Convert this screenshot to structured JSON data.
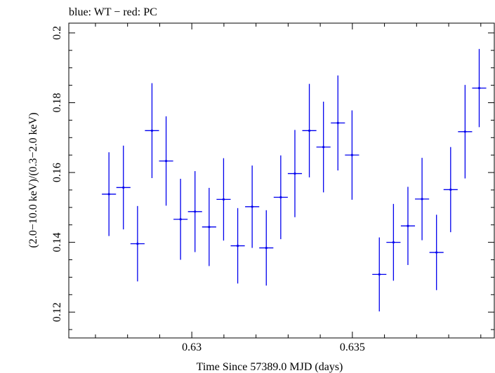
{
  "chart_data": {
    "type": "scatter",
    "title": "blue: WT − red: PC",
    "xlabel": "Time Since 57389.0 MJD (days)",
    "ylabel": "(2.0−10.0 keV)/(0.3−2.0 keV)",
    "xlim": [
      0.62617,
      0.63942
    ],
    "ylim": [
      0.1126,
      0.2028
    ],
    "x_ticks": [
      0.63,
      0.635
    ],
    "y_ticks": [
      0.12,
      0.14,
      0.16,
      0.18,
      0.2
    ],
    "x_tick_labels": [
      "0.63",
      "0.635"
    ],
    "y_tick_labels": [
      "0.12",
      "0.14",
      "0.16",
      "0.18",
      "0.2"
    ],
    "grid": false,
    "series": [
      {
        "color": "#0000ee",
        "points": [
          {
            "x": 0.62742,
            "xerr": 0.00022,
            "y": 0.1538,
            "yerr": 0.012
          },
          {
            "x": 0.62787,
            "xerr": 0.00022,
            "y": 0.1557,
            "yerr": 0.012
          },
          {
            "x": 0.62831,
            "xerr": 0.00022,
            "y": 0.1396,
            "yerr": 0.0108
          },
          {
            "x": 0.62876,
            "xerr": 0.00022,
            "y": 0.172,
            "yerr": 0.0136
          },
          {
            "x": 0.6292,
            "xerr": 0.00022,
            "y": 0.1633,
            "yerr": 0.0128
          },
          {
            "x": 0.62965,
            "xerr": 0.00022,
            "y": 0.1466,
            "yerr": 0.0116
          },
          {
            "x": 0.6301,
            "xerr": 0.00022,
            "y": 0.1488,
            "yerr": 0.0116
          },
          {
            "x": 0.63054,
            "xerr": 0.00022,
            "y": 0.1444,
            "yerr": 0.0112
          },
          {
            "x": 0.63099,
            "xerr": 0.00022,
            "y": 0.1523,
            "yerr": 0.0118
          },
          {
            "x": 0.63143,
            "xerr": 0.00022,
            "y": 0.139,
            "yerr": 0.0108
          },
          {
            "x": 0.63188,
            "xerr": 0.00022,
            "y": 0.1502,
            "yerr": 0.0118
          },
          {
            "x": 0.63232,
            "xerr": 0.00022,
            "y": 0.1384,
            "yerr": 0.0108
          },
          {
            "x": 0.63277,
            "xerr": 0.00022,
            "y": 0.1529,
            "yerr": 0.012
          },
          {
            "x": 0.63321,
            "xerr": 0.00022,
            "y": 0.1597,
            "yerr": 0.0125
          },
          {
            "x": 0.63366,
            "xerr": 0.00022,
            "y": 0.172,
            "yerr": 0.0134
          },
          {
            "x": 0.6341,
            "xerr": 0.00022,
            "y": 0.1673,
            "yerr": 0.013
          },
          {
            "x": 0.63455,
            "xerr": 0.00022,
            "y": 0.1742,
            "yerr": 0.0136
          },
          {
            "x": 0.63499,
            "xerr": 0.00022,
            "y": 0.165,
            "yerr": 0.0128
          },
          {
            "x": 0.63584,
            "xerr": 0.00022,
            "y": 0.1308,
            "yerr": 0.0106
          },
          {
            "x": 0.63628,
            "xerr": 0.00022,
            "y": 0.14,
            "yerr": 0.011
          },
          {
            "x": 0.63673,
            "xerr": 0.00022,
            "y": 0.1447,
            "yerr": 0.0112
          },
          {
            "x": 0.63717,
            "xerr": 0.00022,
            "y": 0.1524,
            "yerr": 0.0118
          },
          {
            "x": 0.63762,
            "xerr": 0.00022,
            "y": 0.1371,
            "yerr": 0.0108
          },
          {
            "x": 0.63806,
            "xerr": 0.00022,
            "y": 0.1551,
            "yerr": 0.0122
          },
          {
            "x": 0.63851,
            "xerr": 0.00022,
            "y": 0.1717,
            "yerr": 0.0134
          },
          {
            "x": 0.63895,
            "xerr": 0.00022,
            "y": 0.1842,
            "yerr": 0.0112
          }
        ]
      }
    ]
  }
}
